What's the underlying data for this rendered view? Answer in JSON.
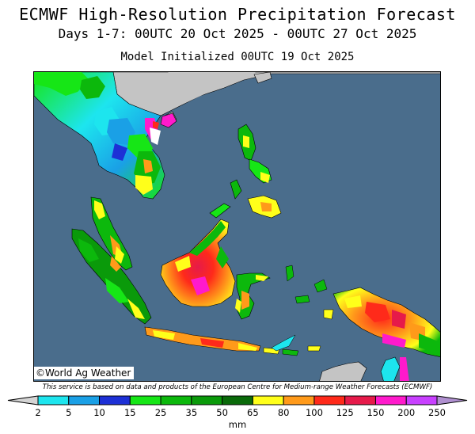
{
  "title": "ECMWF High-Resolution Precipitation Forecast",
  "subtitle": "Days 1-7: 00UTC 20 Oct 2025 - 00UTC 27 Oct 2025",
  "init_line": "Model Initialized 00UTC 19 Oct 2025",
  "credit": "©World Ag Weather",
  "disclaimer": "This service is based on data and products of the European Centre for Medium-range Weather Forecasts (ECMWF)",
  "colorbar": {
    "unit": "mm",
    "ticks": [
      "2",
      "5",
      "10",
      "15",
      "25",
      "35",
      "50",
      "65",
      "80",
      "100",
      "125",
      "150",
      "200",
      "250"
    ],
    "colors": [
      "#d4d4d4",
      "#1de5ee",
      "#1aa0e6",
      "#1d30d6",
      "#16e616",
      "#0cb80c",
      "#0a9a0a",
      "#0a6a0a",
      "#ffff1a",
      "#ff9a1a",
      "#ff2a1a",
      "#e61a4a",
      "#ff1acc",
      "#c840ff",
      "#b090d0"
    ]
  },
  "map_colors": {
    "ocean": "#4a6d8c",
    "no_rain_land": "#c4c4c4"
  }
}
